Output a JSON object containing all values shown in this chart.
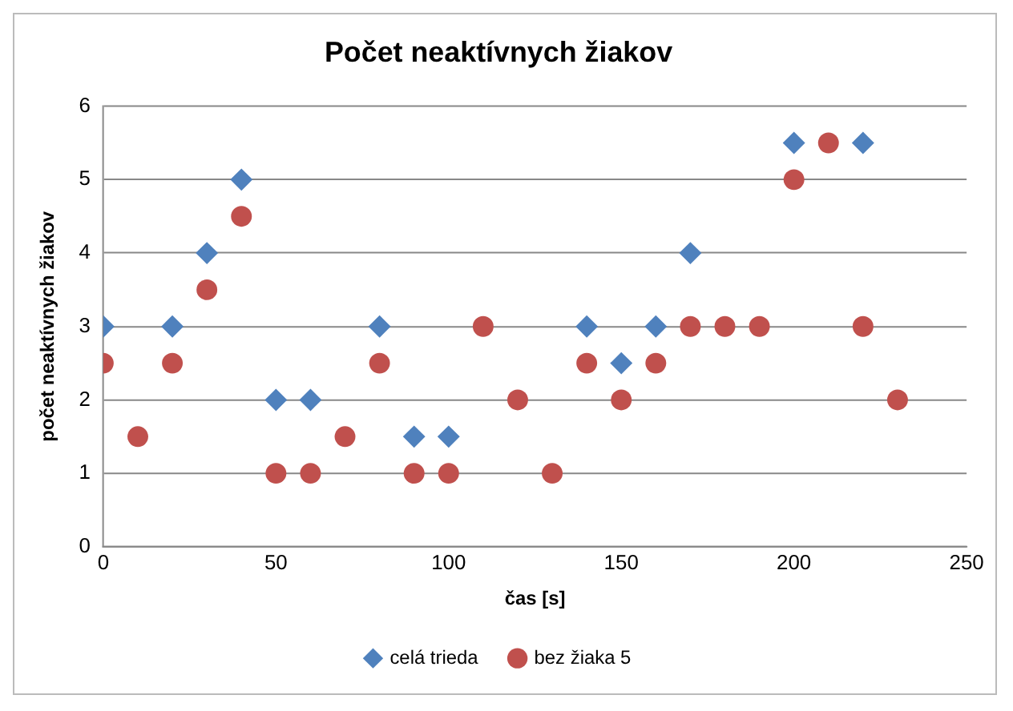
{
  "chart_data": {
    "type": "scatter",
    "title": "Počet neaktívnych žiakov",
    "xlabel": "čas [s]",
    "ylabel": "počet neaktívnych žiakov",
    "series": [
      {
        "name": "celá trieda",
        "color": "#4f81bd",
        "marker": "diamond",
        "x": [
          0,
          20,
          30,
          40,
          50,
          60,
          80,
          90,
          100,
          140,
          150,
          160,
          170,
          200,
          220
        ],
        "values": [
          3,
          3,
          4,
          5,
          2,
          2,
          3,
          1.5,
          1.5,
          3,
          2.5,
          3,
          4,
          5.5,
          5.5
        ]
      },
      {
        "name": "bez žiaka 5",
        "color": "#c0504d",
        "marker": "circle",
        "x": [
          0,
          10,
          20,
          30,
          40,
          50,
          60,
          70,
          80,
          90,
          100,
          110,
          120,
          130,
          140,
          150,
          160,
          170,
          180,
          190,
          200,
          210,
          220,
          230
        ],
        "values": [
          2.5,
          1.5,
          2.5,
          3.5,
          4.5,
          1,
          1,
          1.5,
          2.5,
          1,
          1,
          3,
          2,
          1,
          2.5,
          2,
          2.5,
          3,
          3,
          3,
          5,
          5.5,
          3,
          2
        ]
      }
    ],
    "xlim": [
      0,
      250
    ],
    "xticks": [
      0,
      50,
      100,
      150,
      200,
      250
    ],
    "ylim": [
      0,
      6
    ],
    "yticks": [
      0,
      1,
      2,
      3,
      4,
      5,
      6
    ],
    "grid": "y",
    "legend": "bottom"
  }
}
